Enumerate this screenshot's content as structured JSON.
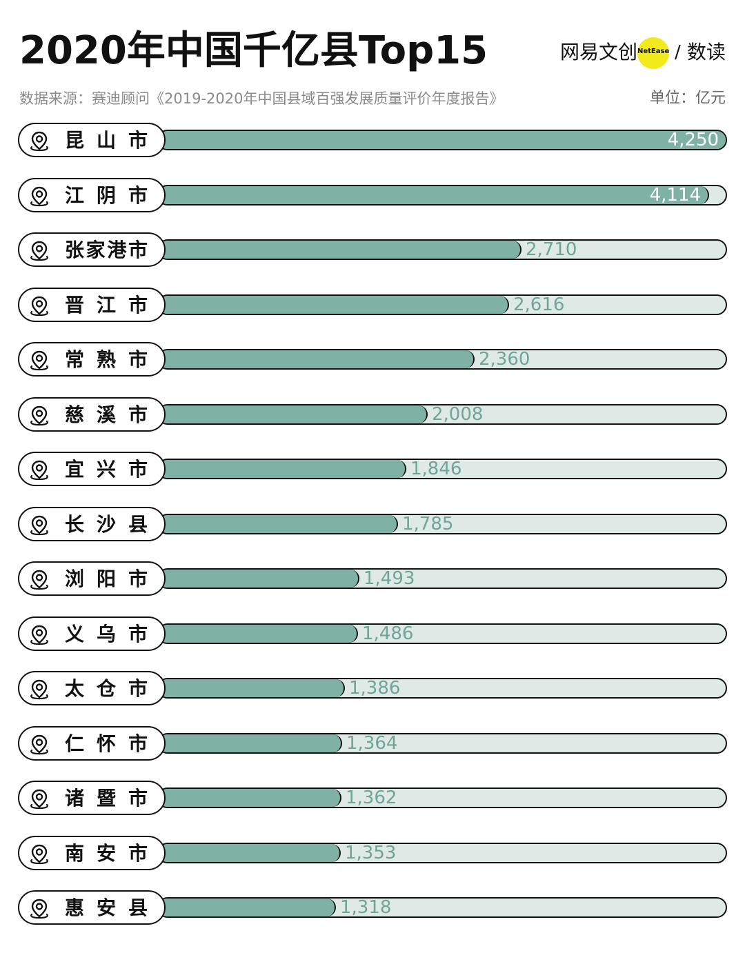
{
  "header": {
    "title": "2020年中国千亿县Top15",
    "brand_name": "网易文创",
    "brand_badge": "NetEase",
    "brand_sub": "数读",
    "brand_color": "#f3ea1b",
    "source": "数据来源：赛迪顾问《2019-2020年中国县域百强发展质量评价年度报告》",
    "unit": "单位：亿元"
  },
  "colors": {
    "bar_fill": "#7fb1a4",
    "track": "#dfe9e6",
    "value_text": "#6fa596",
    "outline": "#111111"
  },
  "chart_data": {
    "type": "bar",
    "orientation": "horizontal",
    "title": "2020年中国千亿县Top15",
    "unit": "亿元",
    "xlim": [
      0,
      4250
    ],
    "categories": [
      "昆山市",
      "江阴市",
      "张家港市",
      "晋江市",
      "常熟市",
      "慈溪市",
      "宜兴市",
      "长沙县",
      "浏阳市",
      "义乌市",
      "太仓市",
      "仁怀市",
      "诸暨市",
      "南安市",
      "惠安县"
    ],
    "values": [
      4250,
      4114,
      2710,
      2616,
      2360,
      2008,
      1846,
      1785,
      1493,
      1486,
      1386,
      1364,
      1362,
      1353,
      1318
    ],
    "value_labels": [
      "4,250",
      "4,114",
      "2,710",
      "2,616",
      "2,360",
      "2,008",
      "1,846",
      "1,785",
      "1,493",
      "1,486",
      "1,386",
      "1,364",
      "1,362",
      "1,353",
      "1,318"
    ]
  }
}
